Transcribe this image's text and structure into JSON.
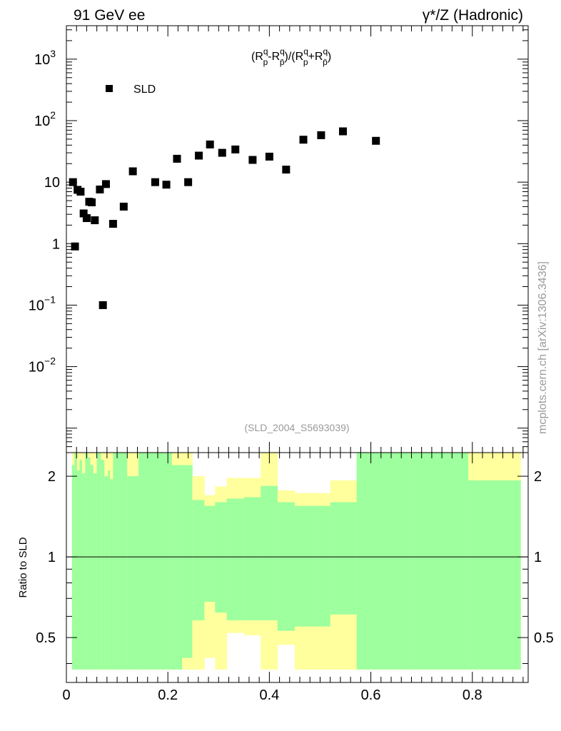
{
  "chart_data": {
    "type": "scatter",
    "header_left": "91 GeV ee",
    "header_right": "γ*/Z (Hadronic)",
    "title_parts": [
      "(R",
      "q",
      "p",
      "-R",
      "q",
      "p",
      "̄",
      ")/(R",
      "q",
      "p",
      "+R",
      "q",
      "p",
      "̄",
      ")"
    ],
    "title_text": "(Rqp-Rqp̄)/(Rqp+Rqp̄)",
    "legend": "SLD",
    "analysis_id": "(SLD_2004_S5693039)",
    "side_label": "mcplots.cern.ch [arXiv:1306.3436]",
    "xlim": [
      0,
      0.91
    ],
    "ylim_log": [
      0.0004,
      3500
    ],
    "x_ticks": [
      "0",
      "0.2",
      "0.4",
      "0.6",
      "0.8"
    ],
    "x_tick_values": [
      0,
      0.2,
      0.4,
      0.6,
      0.8
    ],
    "y_ticks": [
      {
        "value": 1000,
        "base": "10",
        "exp": "3"
      },
      {
        "value": 100,
        "base": "10",
        "exp": "2"
      },
      {
        "value": 10,
        "base": "10",
        "exp": ""
      },
      {
        "value": 1,
        "base": "1",
        "exp": ""
      },
      {
        "value": 0.1,
        "base": "10",
        "exp": "−1"
      },
      {
        "value": 0.01,
        "base": "10",
        "exp": "−2"
      }
    ],
    "series": [
      {
        "name": "SLD",
        "x": [
          0.013,
          0.017,
          0.022,
          0.028,
          0.034,
          0.04,
          0.045,
          0.05,
          0.056,
          0.066,
          0.072,
          0.078,
          0.092,
          0.113,
          0.131,
          0.175,
          0.197,
          0.218,
          0.24,
          0.261,
          0.283,
          0.307,
          0.333,
          0.367,
          0.4,
          0.433,
          0.467,
          0.502,
          0.545,
          0.61
        ],
        "y": [
          10,
          0.9,
          7.5,
          7,
          3.1,
          2.6,
          4.8,
          4.7,
          2.4,
          7.6,
          0.1,
          9.3,
          2.1,
          4,
          15,
          10,
          9.1,
          24,
          10,
          27,
          41,
          30,
          34,
          23,
          26,
          16,
          49,
          58,
          67,
          47
        ]
      }
    ],
    "ratio": {
      "ylabel": "Ratio to SLD",
      "y_ticks": [
        "0.5",
        "1",
        "2"
      ],
      "y_tick_values": [
        0.5,
        1,
        2
      ],
      "ylim": [
        0.34,
        2.45
      ],
      "bands": [
        {
          "x0": 0.011,
          "x1": 0.016,
          "g": [
            0.38,
            2.2
          ],
          "y": [
            0.38,
            2.45
          ]
        },
        {
          "x0": 0.016,
          "x1": 0.021,
          "g": [
            0.38,
            2.45
          ],
          "y": [
            0.38,
            2.45
          ]
        },
        {
          "x0": 0.021,
          "x1": 0.026,
          "g": [
            0.38,
            2.1
          ],
          "y": [
            0.38,
            2.45
          ]
        },
        {
          "x0": 0.026,
          "x1": 0.031,
          "g": [
            0.38,
            2.3
          ],
          "y": [
            0.38,
            2.45
          ]
        },
        {
          "x0": 0.031,
          "x1": 0.037,
          "g": [
            0.38,
            2.05
          ],
          "y": [
            0.38,
            2.45
          ]
        },
        {
          "x0": 0.037,
          "x1": 0.042,
          "g": [
            0.38,
            2.45
          ],
          "y": [
            0.38,
            2.45
          ]
        },
        {
          "x0": 0.042,
          "x1": 0.047,
          "g": [
            0.38,
            2.35
          ],
          "y": [
            0.38,
            2.45
          ]
        },
        {
          "x0": 0.047,
          "x1": 0.053,
          "g": [
            0.38,
            2.2
          ],
          "y": [
            0.38,
            2.45
          ]
        },
        {
          "x0": 0.053,
          "x1": 0.06,
          "g": [
            0.38,
            2.05
          ],
          "y": [
            0.38,
            2.45
          ]
        },
        {
          "x0": 0.06,
          "x1": 0.068,
          "g": [
            0.38,
            2.45
          ],
          "y": [
            0.38,
            2.45
          ]
        },
        {
          "x0": 0.068,
          "x1": 0.075,
          "g": [
            0.38,
            2.3
          ],
          "y": [
            0.38,
            2.45
          ]
        },
        {
          "x0": 0.075,
          "x1": 0.082,
          "g": [
            0.38,
            2.0
          ],
          "y": [
            0.38,
            2.45
          ]
        },
        {
          "x0": 0.082,
          "x1": 0.086,
          "g": [
            0.38,
            2.1
          ],
          "y": [
            0.38,
            2.45
          ]
        },
        {
          "x0": 0.086,
          "x1": 0.092,
          "g": [
            0.38,
            1.95
          ],
          "y": [
            0.38,
            2.45
          ]
        },
        {
          "x0": 0.092,
          "x1": 0.12,
          "g": [
            0.38,
            2.45
          ],
          "y": [
            0.38,
            2.45
          ]
        },
        {
          "x0": 0.12,
          "x1": 0.142,
          "g": [
            0.38,
            2.0
          ],
          "y": [
            0.38,
            2.45
          ]
        },
        {
          "x0": 0.142,
          "x1": 0.197,
          "g": [
            0.38,
            2.45
          ],
          "y": [
            0.38,
            2.45
          ]
        },
        {
          "x0": 0.197,
          "x1": 0.208,
          "g": [
            0.38,
            2.45
          ],
          "y": [
            0.38,
            2.45
          ]
        },
        {
          "x0": 0.208,
          "x1": 0.228,
          "g": [
            0.38,
            2.2
          ],
          "y": [
            0.38,
            2.45
          ]
        },
        {
          "x0": 0.228,
          "x1": 0.248,
          "g": [
            0.42,
            2.2
          ],
          "y": [
            0.38,
            2.45
          ]
        },
        {
          "x0": 0.248,
          "x1": 0.272,
          "g": [
            0.58,
            1.63
          ],
          "y": [
            0.38,
            2.0
          ]
        },
        {
          "x0": 0.272,
          "x1": 0.293,
          "g": [
            0.68,
            1.55
          ],
          "y": [
            0.42,
            1.7
          ]
        },
        {
          "x0": 0.293,
          "x1": 0.316,
          "g": [
            0.62,
            1.6
          ],
          "y": [
            0.38,
            1.83
          ]
        },
        {
          "x0": 0.316,
          "x1": 0.35,
          "g": [
            0.58,
            1.65
          ],
          "y": [
            0.52,
            1.97
          ]
        },
        {
          "x0": 0.35,
          "x1": 0.383,
          "g": [
            0.58,
            1.67
          ],
          "y": [
            0.51,
            1.97
          ]
        },
        {
          "x0": 0.383,
          "x1": 0.416,
          "g": [
            0.58,
            1.84
          ],
          "y": [
            0.38,
            2.45
          ]
        },
        {
          "x0": 0.416,
          "x1": 0.45,
          "g": [
            0.53,
            1.6
          ],
          "y": [
            0.47,
            1.77
          ]
        },
        {
          "x0": 0.45,
          "x1": 0.484,
          "g": [
            0.55,
            1.55
          ],
          "y": [
            0.38,
            1.73
          ]
        },
        {
          "x0": 0.484,
          "x1": 0.52,
          "g": [
            0.55,
            1.55
          ],
          "y": [
            0.38,
            1.73
          ]
        },
        {
          "x0": 0.52,
          "x1": 0.572,
          "g": [
            0.61,
            1.6
          ],
          "y": [
            0.38,
            1.93
          ]
        },
        {
          "x0": 0.572,
          "x1": 0.675,
          "g": [
            0.38,
            2.45
          ],
          "y": [
            0.38,
            2.45
          ]
        },
        {
          "x0": 0.675,
          "x1": 0.792,
          "g": [
            0.38,
            2.45
          ],
          "y": [
            0.38,
            2.45
          ]
        },
        {
          "x0": 0.792,
          "x1": 0.895,
          "g": [
            0.38,
            1.93
          ],
          "y": [
            0.38,
            2.45
          ]
        }
      ]
    },
    "colors": {
      "green": "#9dff9d",
      "yellow": "#ffff9d",
      "marker": "#000000",
      "grey_text": "#9a9a9a"
    },
    "legend_position": "top-left",
    "grid": false
  }
}
